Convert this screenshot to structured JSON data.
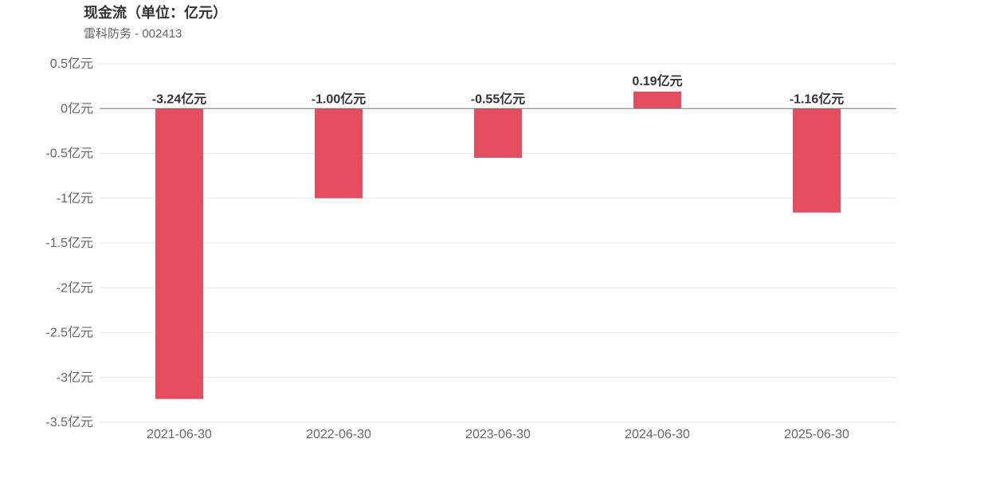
{
  "header": {
    "title": "现金流（单位：亿元）",
    "subtitle": "雷科防务 - 002413"
  },
  "colors": {
    "bar": "#e64c5f",
    "grid": "#e6e6ef",
    "zero_line": "#777777"
  },
  "chart_data": {
    "type": "bar",
    "title": "现金流（单位：亿元）",
    "subtitle": "雷科防务 - 002413",
    "categories": [
      "2021-06-30",
      "2022-06-30",
      "2023-06-30",
      "2024-06-30",
      "2025-06-30"
    ],
    "values": [
      -3.24,
      -1.0,
      -0.55,
      0.19,
      -1.16
    ],
    "data_labels": [
      "-3.24亿元",
      "-1.00亿元",
      "-0.55亿元",
      "0.19亿元",
      "-1.16亿元"
    ],
    "ylim": [
      -3.5,
      0.5
    ],
    "yticks": [
      0.5,
      0,
      -0.5,
      -1,
      -1.5,
      -2,
      -2.5,
      -3,
      -3.5
    ],
    "ytick_labels": [
      "0.5亿元",
      "0亿元",
      "-0.5亿元",
      "-1亿元",
      "-1.5亿元",
      "-2亿元",
      "-2.5亿元",
      "-3亿元",
      "-3.5亿元"
    ],
    "xlabel": "",
    "ylabel": "",
    "grid": true,
    "legend": "none"
  }
}
